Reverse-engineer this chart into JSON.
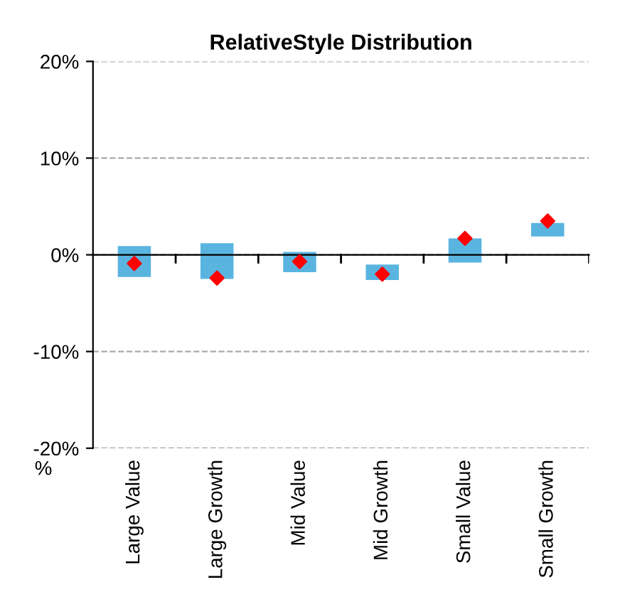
{
  "chart_data": {
    "type": "bar",
    "title": "RelativeStyle Distribution",
    "ylabel": "%",
    "categories": [
      "Large Value",
      "Large Growth",
      "Mid Value",
      "Mid Growth",
      "Small Value",
      "Small Growth"
    ],
    "series": [
      {
        "color": "#5ab4e0",
        "base": [
          -2.3,
          -2.5,
          -1.8,
          -2.6,
          -0.8,
          1.9
        ],
        "values": [
          3.2,
          3.7,
          2.1,
          1.6,
          2.5,
          1.4
        ]
      },
      {
        "type": "scatter",
        "color": "#ff0000",
        "marker": "diamond",
        "x": [
          "Large Value",
          "Large Growth",
          "Mid Value",
          "Mid Growth",
          "Small Value",
          "Small Growth"
        ],
        "values": [
          -0.9,
          -2.4,
          -0.7,
          -2.0,
          1.7,
          3.5
        ]
      }
    ],
    "ylim": [
      -20,
      20
    ],
    "yticks": [
      {
        "value": -20,
        "label": "-20%"
      },
      {
        "value": -10,
        "label": "-10%"
      },
      {
        "value": 0,
        "label": "0%"
      },
      {
        "value": 10,
        "label": "10%"
      },
      {
        "value": 20,
        "label": "20%"
      }
    ],
    "grid": "y",
    "legend": false
  }
}
